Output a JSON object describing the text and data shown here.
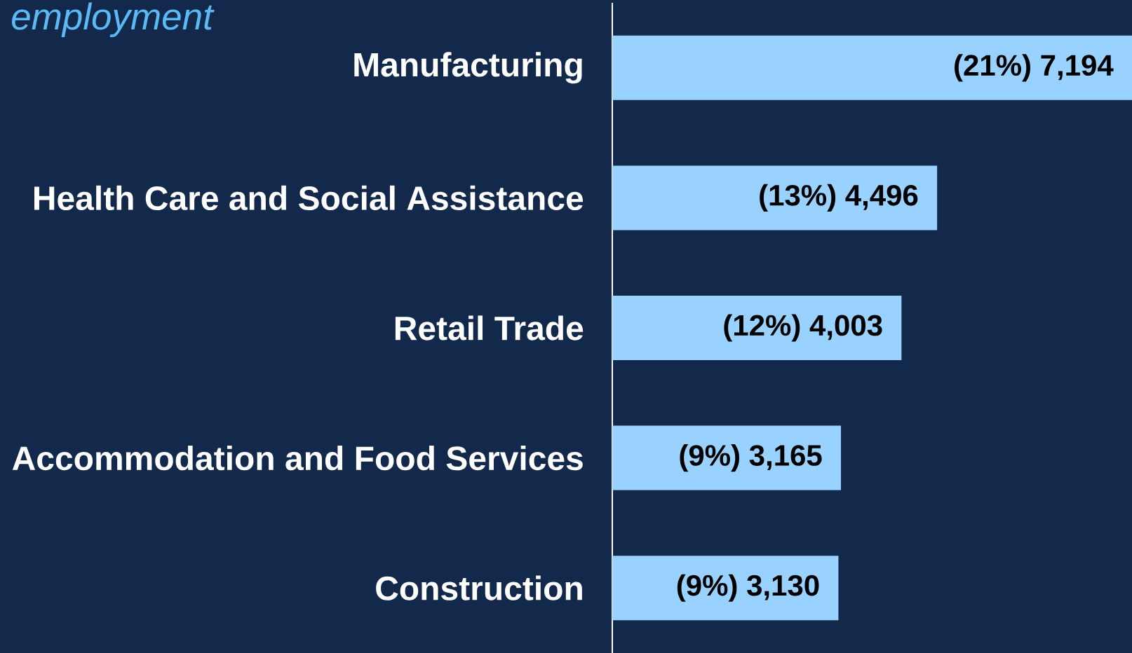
{
  "chart_data": {
    "type": "bar",
    "orientation": "horizontal",
    "title": "employment",
    "categories": [
      "Manufacturing",
      "Health Care and Social Assistance",
      "Retail Trade",
      "Accommodation and Food Services",
      "Construction"
    ],
    "values": [
      7194,
      4496,
      4003,
      3165,
      3130
    ],
    "color": "#99d1ff",
    "value_labels": [
      "(21%) 7,194",
      "(13%) 4,496",
      "(12%) 4,003",
      "(9%) 3,165",
      "(9%) 3,130"
    ]
  }
}
